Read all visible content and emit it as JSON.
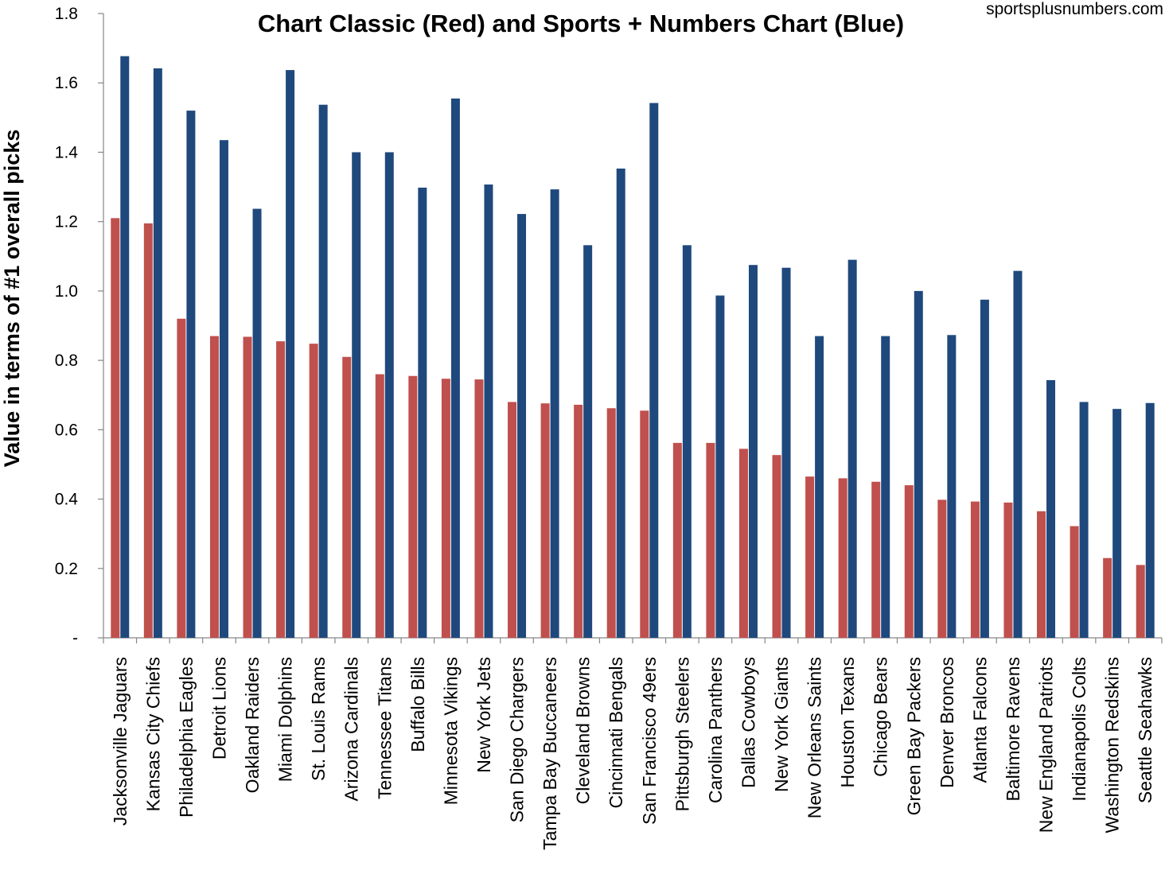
{
  "chart_data": {
    "type": "bar",
    "title": "Chart Classic (Red) and Sports + Numbers Chart (Blue)",
    "source_note": "sportsplusnumbers.com",
    "xlabel": "",
    "ylabel": "Value in terms of #1 overall picks",
    "ylim": [
      0,
      1.8
    ],
    "yticks": [
      "-",
      "0.2",
      "0.4",
      "0.6",
      "0.8",
      "1.0",
      "1.2",
      "1.4",
      "1.6",
      "1.8"
    ],
    "grid": false,
    "categories": [
      "Jacksonville Jaguars",
      "Kansas City Chiefs",
      "Philadelphia Eagles",
      "Detroit Lions",
      "Oakland Raiders",
      "Miami Dolphins",
      "St. Louis Rams",
      "Arizona Cardinals",
      "Tennessee Titans",
      "Buffalo Bills",
      "Minnesota Vikings",
      "New York Jets",
      "San Diego Chargers",
      "Tampa Bay Buccaneers",
      "Cleveland Browns",
      "Cincinnati Bengals",
      "San Francisco 49ers",
      "Pittsburgh Steelers",
      "Carolina Panthers",
      "Dallas Cowboys",
      "New York Giants",
      "New Orleans Saints",
      "Houston Texans",
      "Chicago Bears",
      "Green Bay Packers",
      "Denver Broncos",
      "Atlanta Falcons",
      "Baltimore Ravens",
      "New England Patriots",
      "Indianapolis Colts",
      "Washington Redskins",
      "Seattle Seahawks"
    ],
    "series": [
      {
        "color": "#c0504d",
        "values": [
          1.21,
          1.195,
          0.92,
          0.87,
          0.868,
          0.855,
          0.848,
          0.81,
          0.76,
          0.755,
          0.747,
          0.745,
          0.68,
          0.676,
          0.672,
          0.662,
          0.655,
          0.562,
          0.562,
          0.545,
          0.527,
          0.465,
          0.46,
          0.45,
          0.44,
          0.398,
          0.393,
          0.39,
          0.365,
          0.322,
          0.23,
          0.21
        ]
      },
      {
        "color": "#1f497d",
        "values": [
          1.677,
          1.642,
          1.52,
          1.435,
          1.237,
          1.637,
          1.537,
          1.4,
          1.4,
          1.298,
          1.555,
          1.307,
          1.222,
          1.293,
          1.132,
          1.353,
          1.542,
          1.132,
          0.987,
          1.075,
          1.067,
          0.87,
          1.09,
          0.87,
          1.0,
          0.873,
          0.975,
          1.058,
          0.743,
          0.68,
          0.66,
          0.677
        ]
      }
    ]
  }
}
